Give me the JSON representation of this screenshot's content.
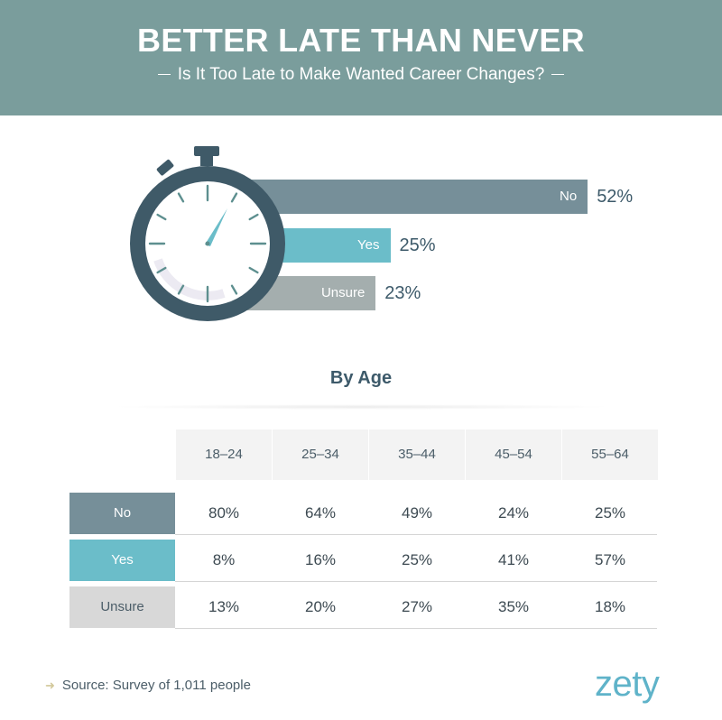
{
  "header": {
    "title": "BETTER LATE THAN NEVER",
    "subtitle": "Is It Too Late to Make Wanted Career Changes?"
  },
  "colors": {
    "no": "#768f99",
    "yes": "#6bbdc9",
    "unsure": "#a4aeae",
    "unsure_label_bg": "#d8d8d8",
    "header_bg": "#7a9d9c",
    "watch_dark": "#3f5a68"
  },
  "chart_data": [
    {
      "type": "bar",
      "categories": [
        "No",
        "Yes",
        "Unsure"
      ],
      "values": [
        52,
        25,
        23
      ],
      "value_labels": [
        "52%",
        "25%",
        "23%"
      ],
      "unit": "%"
    },
    {
      "type": "table",
      "title": "By Age",
      "columns": [
        "18–24",
        "25–34",
        "35–44",
        "45–54",
        "55–64"
      ],
      "rows": [
        {
          "label": "No",
          "values": [
            "80%",
            "64%",
            "49%",
            "24%",
            "25%"
          ]
        },
        {
          "label": "Yes",
          "values": [
            "8%",
            "16%",
            "25%",
            "41%",
            "57%"
          ]
        },
        {
          "label": "Unsure",
          "values": [
            "13%",
            "20%",
            "27%",
            "35%",
            "18%"
          ]
        }
      ]
    }
  ],
  "footer": {
    "source": "Source: Survey of 1,011 people",
    "logo": "zety"
  }
}
